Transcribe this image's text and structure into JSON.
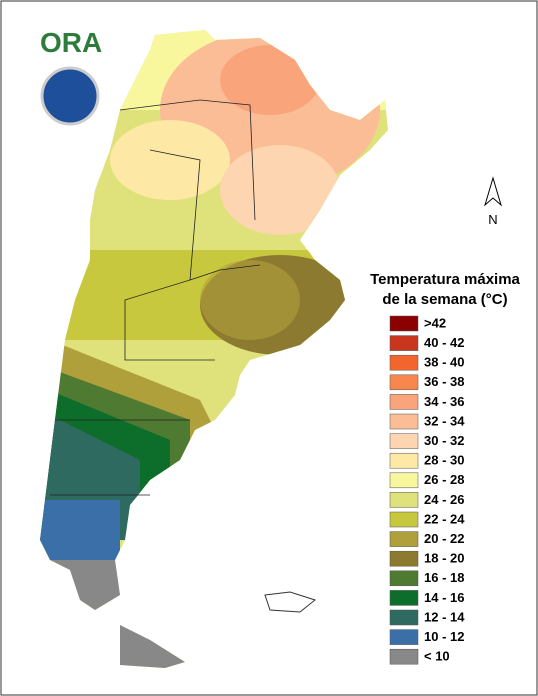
{
  "logo": {
    "text": "ORA"
  },
  "north_label": "N",
  "legend": {
    "title": [
      "Temperatura máxima",
      "de la semana (°C)"
    ],
    "items": [
      {
        "label": ">42",
        "color": "#8b0000"
      },
      {
        "label": "40 - 42",
        "color": "#c8361e"
      },
      {
        "label": "38 - 40",
        "color": "#f2662e"
      },
      {
        "label": "36 - 38",
        "color": "#f7864f"
      },
      {
        "label": "34 - 36",
        "color": "#f9a47a"
      },
      {
        "label": "32 - 34",
        "color": "#fbbd96"
      },
      {
        "label": "30 - 32",
        "color": "#fdd5b0"
      },
      {
        "label": "28 - 30",
        "color": "#fde8a6"
      },
      {
        "label": "26 - 28",
        "color": "#f8f79e"
      },
      {
        "label": "24 - 26",
        "color": "#dfe27a"
      },
      {
        "label": "22 - 24",
        "color": "#c8c83e"
      },
      {
        "label": "20 - 22",
        "color": "#b0a03c"
      },
      {
        "label": "18 - 20",
        "color": "#8c7a30"
      },
      {
        "label": "16 - 18",
        "color": "#4f7a32"
      },
      {
        "label": "14 - 16",
        "color": "#0c6e2a"
      },
      {
        "label": "12 - 14",
        "color": "#2e6a60"
      },
      {
        "label": "10 - 12",
        "color": "#3a6fa8"
      },
      {
        "label": "< 10",
        "color": "#888888"
      }
    ]
  }
}
